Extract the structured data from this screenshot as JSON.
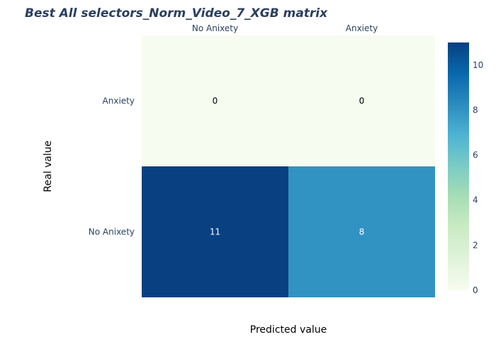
{
  "chart_data": {
    "type": "heatmap",
    "title": "Best All selectors_Norm_Video_7_XGB matrix",
    "xlabel": "Predicted value",
    "ylabel": "Real value",
    "x_categories": [
      "No Anixety",
      "Anxiety"
    ],
    "y_categories": [
      "Anxiety",
      "No Anixety"
    ],
    "z": [
      [
        0,
        0
      ],
      [
        11,
        8
      ]
    ],
    "text": [
      [
        "0",
        "0"
      ],
      [
        "11",
        "8"
      ]
    ],
    "zlim": [
      0,
      11
    ],
    "colorbar": {
      "ticks": [
        0,
        2,
        4,
        6,
        8,
        10
      ]
    },
    "colorscale": [
      [
        0.0,
        "#f7fcf0"
      ],
      [
        0.125,
        "#e0f3db"
      ],
      [
        0.25,
        "#ccebc5"
      ],
      [
        0.375,
        "#a8ddb5"
      ],
      [
        0.5,
        "#7bccc4"
      ],
      [
        0.625,
        "#4eb3d3"
      ],
      [
        0.75,
        "#2b8cbe"
      ],
      [
        0.875,
        "#0868ac"
      ],
      [
        1.0,
        "#084081"
      ]
    ],
    "x_axis_side": "top"
  }
}
